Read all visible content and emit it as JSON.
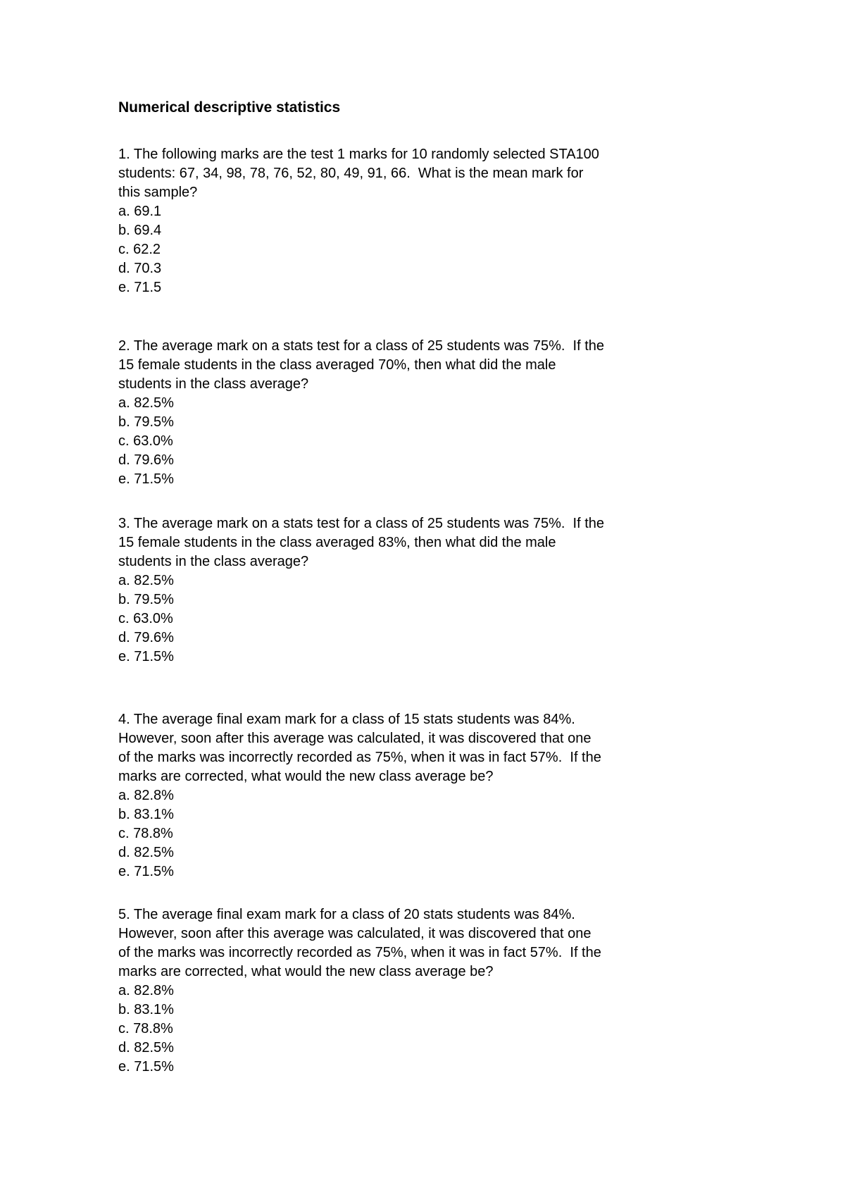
{
  "page": {
    "title": "Numerical descriptive statistics"
  },
  "questions": [
    {
      "text": "1. The following marks are the test 1 marks for 10 randomly selected STA100\nstudents: 67, 34, 98, 78, 76, 52, 80, 49, 91, 66.  What is the mean mark for\nthis sample?",
      "options": [
        "a. 69.1",
        "b. 69.4",
        "c. 62.2",
        "d. 70.3",
        "e. 71.5"
      ]
    },
    {
      "text": "2. The average mark on a stats test for a class of 25 students was 75%.  If the\n15 female students in the class averaged 70%, then what did the male\nstudents in the class average?",
      "options": [
        "a. 82.5%",
        "b. 79.5%",
        "c. 63.0%",
        "d. 79.6%",
        "e. 71.5%"
      ]
    },
    {
      "text": "3. The average mark on a stats test for a class of 25 students was 75%.  If the\n15 female students in the class averaged 83%, then what did the male\nstudents in the class average?",
      "options": [
        "a. 82.5%",
        "b. 79.5%",
        "c. 63.0%",
        "d. 79.6%",
        "e. 71.5%"
      ]
    },
    {
      "text": "4. The average final exam mark for a class of 15 stats students was 84%.\nHowever, soon after this average was calculated, it was discovered that one\nof the marks was incorrectly recorded as 75%, when it was in fact 57%.  If the\nmarks are corrected, what would the new class average be?",
      "options": [
        "a. 82.8%",
        "b. 83.1%",
        "c. 78.8%",
        "d. 82.5%",
        "e. 71.5%"
      ]
    },
    {
      "text": "5. The average final exam mark for a class of 20 stats students was 84%.\nHowever, soon after this average was calculated, it was discovered that one\nof the marks was incorrectly recorded as 75%, when it was in fact 57%.  If the\nmarks are corrected, what would the new class average be?",
      "options": [
        "a. 82.8%",
        "b. 83.1%",
        "c. 78.8%",
        "d. 82.5%",
        "e. 71.5%"
      ]
    }
  ]
}
